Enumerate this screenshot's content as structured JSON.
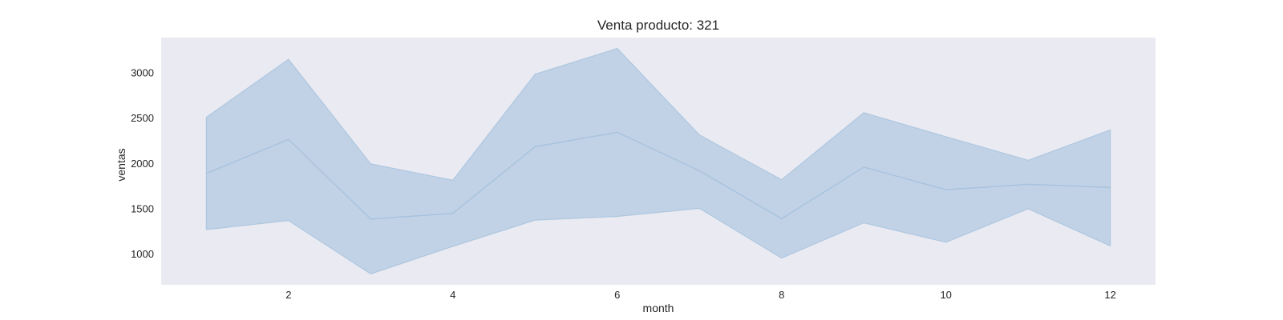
{
  "chart_data": {
    "type": "area",
    "title": "Venta producto: 321",
    "xlabel": "month",
    "ylabel": "ventas",
    "xlim": [
      0.45,
      12.55
    ],
    "ylim": [
      660,
      3390
    ],
    "xticks": [
      2,
      4,
      6,
      8,
      10,
      12
    ],
    "yticks": [
      1000,
      1500,
      2000,
      2500,
      3000
    ],
    "grid": false,
    "legend": "none",
    "colors": {
      "plot_background": "#eaeaf2",
      "band_fill": "#a9c4de",
      "line": "#a9c4de"
    },
    "x": [
      1,
      2,
      3,
      4,
      5,
      6,
      7,
      8,
      9,
      10,
      11,
      12
    ],
    "series": [
      {
        "mean": [
          1890,
          2265,
          1385,
          1450,
          2185,
          2345,
          1920,
          1390,
          1960,
          1710,
          1770,
          1735
        ],
        "upper": [
          2510,
          3150,
          1995,
          1815,
          2985,
          3270,
          2315,
          1820,
          2560,
          2295,
          2035,
          2370
        ],
        "lower": [
          1270,
          1370,
          780,
          1085,
          1375,
          1415,
          1505,
          955,
          1345,
          1130,
          1500,
          1090
        ]
      }
    ]
  }
}
